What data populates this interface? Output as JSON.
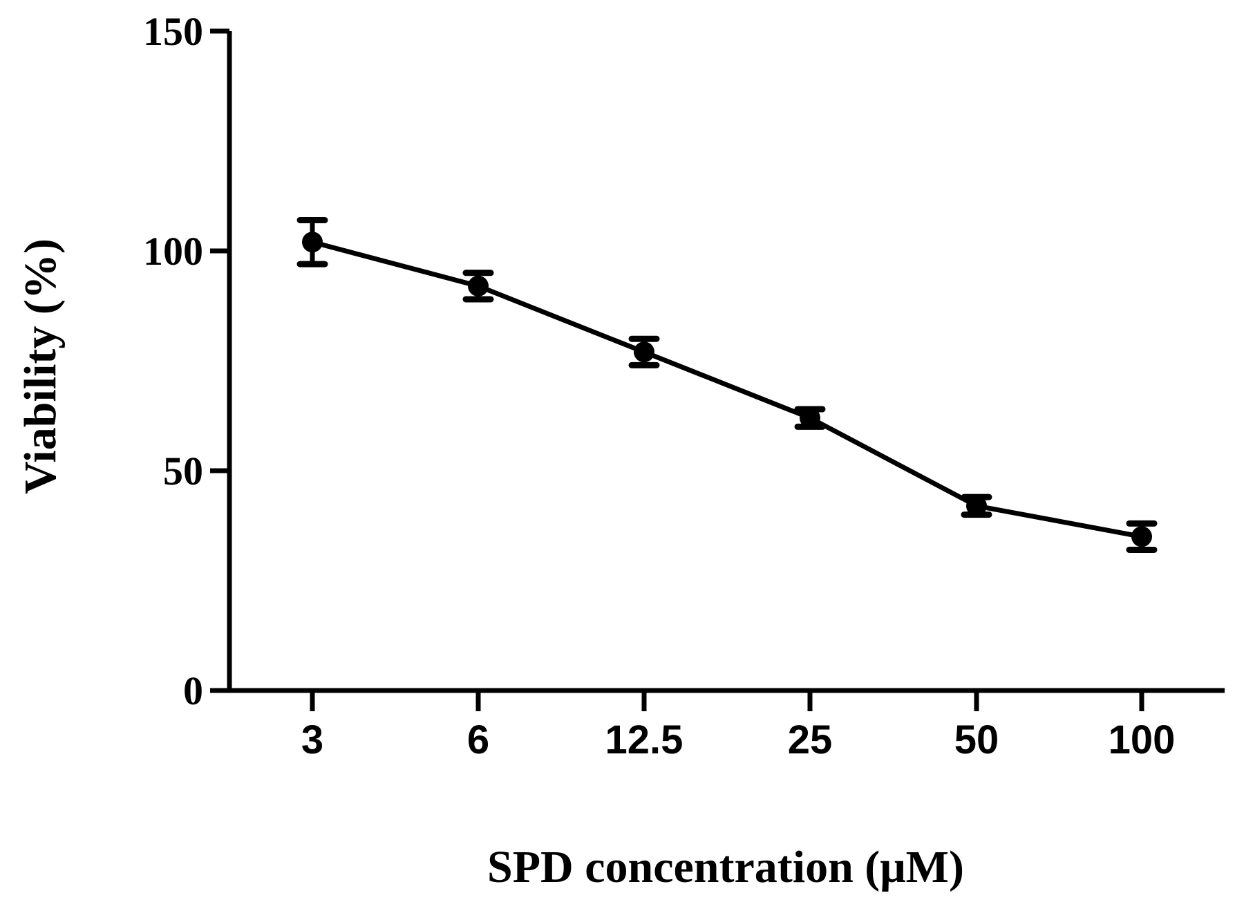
{
  "chart_data": {
    "type": "line",
    "title": "",
    "xlabel": "SPD concentration (μM)",
    "ylabel": "Viability (%)",
    "categories": [
      "3",
      "6",
      "12.5",
      "25",
      "50",
      "100"
    ],
    "series": [
      {
        "name": "Viability",
        "values": [
          102,
          92,
          77,
          62,
          42,
          35
        ],
        "errors": [
          5,
          3,
          3,
          2,
          2,
          3
        ]
      }
    ],
    "ylim": [
      0,
      150
    ],
    "yticks": [
      "0",
      "50",
      "100",
      "150"
    ],
    "grid": false,
    "legend": "none",
    "color": "#000000"
  }
}
